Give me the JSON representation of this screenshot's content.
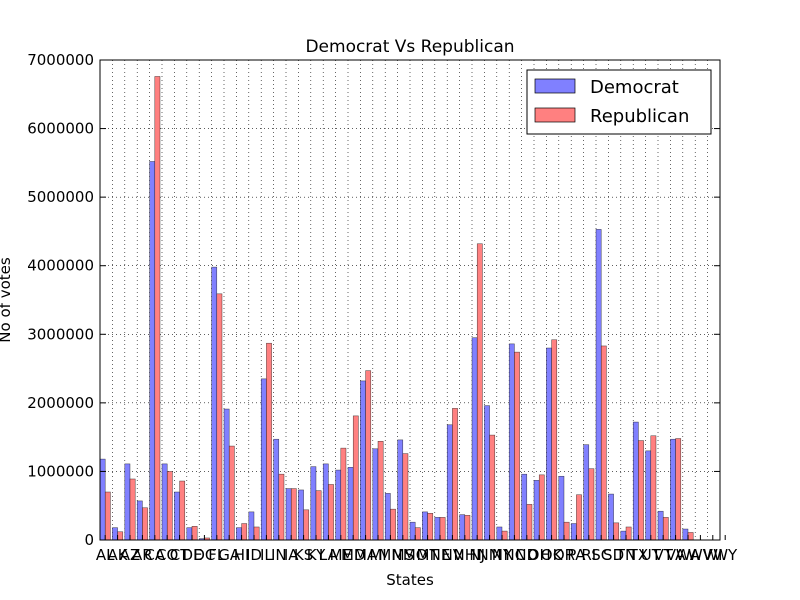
{
  "chart_data": {
    "type": "bar",
    "title": "Democrat Vs Republican",
    "xlabel": "States",
    "ylabel": "No of votes",
    "ylim": [
      0,
      7000000
    ],
    "yticks": [
      "0",
      "1000000",
      "2000000",
      "3000000",
      "4000000",
      "5000000",
      "6000000",
      "7000000"
    ],
    "grid": true,
    "legend_position": "top-right",
    "categories": [
      "AL",
      "AK",
      "AZ",
      "AR",
      "CA",
      "CO",
      "CT",
      "DE",
      "DC",
      "FL",
      "GA",
      "HI",
      "ID",
      "IL",
      "IN",
      "IA",
      "KS",
      "KY",
      "LA",
      "ME",
      "MD",
      "MA",
      "MI",
      "MN",
      "MS",
      "MO",
      "MT",
      "NE",
      "NV",
      "NH",
      "NJ",
      "NM",
      "NY",
      "NC",
      "ND",
      "OH",
      "OK",
      "OR",
      "PA",
      "RI",
      "SC",
      "SD",
      "TN",
      "TX",
      "UT",
      "VT",
      "VA",
      "WA",
      "WV",
      "WI",
      "WY"
    ],
    "series": [
      {
        "name": "Democrat",
        "color": "#8080ff",
        "values": [
          1180000,
          180000,
          1110000,
          570000,
          5520000,
          1110000,
          700000,
          180000,
          20000,
          3980000,
          1910000,
          180000,
          410000,
          2350000,
          1470000,
          750000,
          730000,
          1070000,
          1110000,
          1020000,
          1060000,
          2320000,
          1330000,
          680000,
          1460000,
          260000,
          410000,
          330000,
          1680000,
          370000,
          2950000,
          1960000,
          190000,
          2860000,
          960000,
          870000,
          2800000,
          930000,
          240000,
          1390000,
          4530000,
          670000,
          130000,
          1720000,
          1300000,
          420000,
          1470000,
          160000,
          0,
          0,
          0
        ]
      },
      {
        "name": "Republican",
        "color": "#ff8080",
        "values": [
          700000,
          120000,
          890000,
          470000,
          6760000,
          1000000,
          860000,
          200000,
          30000,
          3590000,
          1370000,
          240000,
          190000,
          2870000,
          960000,
          750000,
          440000,
          720000,
          810000,
          1340000,
          1810000,
          2470000,
          1440000,
          450000,
          1260000,
          180000,
          390000,
          330000,
          1920000,
          360000,
          4320000,
          1530000,
          130000,
          2740000,
          520000,
          950000,
          2920000,
          260000,
          660000,
          1040000,
          2830000,
          250000,
          190000,
          1450000,
          1520000,
          330000,
          1480000,
          110000,
          0,
          0,
          0
        ]
      }
    ]
  }
}
